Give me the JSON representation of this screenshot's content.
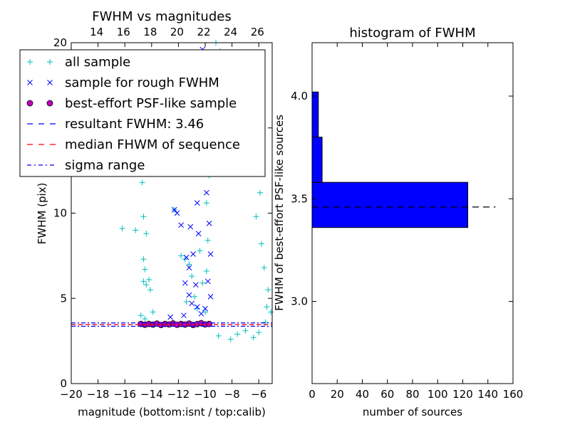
{
  "chart_data": [
    {
      "type": "scatter",
      "title": "FWHM vs magnitudes",
      "xlabel": "magnitude (bottom:isnt / top:calib)",
      "ylabel": "FWHM (pix)",
      "xlim": [
        -20,
        -5
      ],
      "ylim": [
        0,
        20
      ],
      "xticks": [
        -20,
        -18,
        -16,
        -14,
        -12,
        -10,
        -8,
        -6
      ],
      "xtick_labels": [
        "−20",
        "−18",
        "−16",
        "−14",
        "−12",
        "−10",
        "−8",
        "−6"
      ],
      "yticks": [
        0,
        5,
        10,
        15,
        20
      ],
      "ytick_labels": [
        "0",
        "5",
        "10",
        "15",
        "20"
      ],
      "top_xticks_at_bottom": [
        -19.7,
        -17.7,
        -15.7,
        -13.7,
        -11.7,
        -9.7,
        -7.7,
        -5.7
      ],
      "top_xtick_labels": [
        "14",
        "16",
        "18",
        "20",
        "22",
        "24",
        "26"
      ],
      "top_xtick_label_positions": [
        -19.7,
        -17.7,
        -15.7,
        -13.7,
        -11.7,
        -9.7,
        -7.7
      ],
      "legend_position": "upper-left",
      "legend": [
        {
          "label": "all sample",
          "marker": "plus",
          "color": "#00bfbf"
        },
        {
          "label": "sample for rough FWHM",
          "marker": "x",
          "color": "#0000ff"
        },
        {
          "label": "best-effort PSF-like sample",
          "marker": "circle",
          "color": "#bf00bf"
        },
        {
          "label": "resultant FWHM: 3.46",
          "marker": "dash",
          "color": "#0000ff"
        },
        {
          "label": "median FHWM of sequence",
          "marker": "dash",
          "color": "#ff0000"
        },
        {
          "label": "sigma range",
          "marker": "dashdot",
          "color": "#0000ff"
        }
      ],
      "series": [
        {
          "name": "all sample",
          "color": "#00bfbf",
          "points": [
            [
              -16.2,
              9.1
            ],
            [
              -15.2,
              9.0
            ],
            [
              -14.7,
              11.8
            ],
            [
              -14.6,
              9.8
            ],
            [
              -14.4,
              8.8
            ],
            [
              -14.6,
              7.3
            ],
            [
              -14.5,
              6.7
            ],
            [
              -14.2,
              6.1
            ],
            [
              -14.6,
              6.0
            ],
            [
              -14.4,
              5.8
            ],
            [
              -14.1,
              5.5
            ],
            [
              -14.8,
              4.0
            ],
            [
              -14.5,
              3.8
            ],
            [
              -13.9,
              4.2
            ],
            [
              -12.3,
              10.2
            ],
            [
              -11.8,
              7.5
            ],
            [
              -11.5,
              7.3
            ],
            [
              -11.2,
              7.0
            ],
            [
              -10.4,
              7.8
            ],
            [
              -11.0,
              6.3
            ],
            [
              -10.2,
              5.9
            ],
            [
              -10.8,
              5.1
            ],
            [
              -11.4,
              4.8
            ],
            [
              -10.6,
              4.4
            ],
            [
              -10.0,
              4.2
            ],
            [
              -9.9,
              6.6
            ],
            [
              -9.8,
              8.4
            ],
            [
              -9.9,
              10.6
            ],
            [
              -9.7,
              12.2
            ],
            [
              -9.2,
              18.9
            ],
            [
              -8.9,
              19.5
            ],
            [
              -9.2,
              20.0
            ],
            [
              -6.6,
              18.8
            ],
            [
              -6.2,
              18.4
            ],
            [
              -7.2,
              14.6
            ],
            [
              -6.5,
              13.9
            ],
            [
              -7.8,
              15.5
            ],
            [
              -8.2,
              17.0
            ],
            [
              -6.8,
              12.6
            ],
            [
              -5.9,
              11.2
            ],
            [
              -6.2,
              9.8
            ],
            [
              -5.8,
              8.2
            ],
            [
              -5.6,
              6.8
            ],
            [
              -5.3,
              5.5
            ],
            [
              -5.4,
              4.5
            ],
            [
              -5.1,
              4.2
            ],
            [
              -5.5,
              3.6
            ],
            [
              -6.0,
              3.0
            ],
            [
              -7.0,
              3.1
            ],
            [
              -7.6,
              2.9
            ],
            [
              -8.1,
              2.6
            ],
            [
              -9.0,
              2.8
            ],
            [
              -6.4,
              2.7
            ]
          ]
        },
        {
          "name": "sample for rough FWHM",
          "color": "#0000ff",
          "points": [
            [
              -12.3,
              10.2
            ],
            [
              -12.1,
              10.0
            ],
            [
              -11.8,
              9.3
            ],
            [
              -11.1,
              9.2
            ],
            [
              -11.4,
              7.4
            ],
            [
              -11.2,
              6.8
            ],
            [
              -11.5,
              5.9
            ],
            [
              -11.2,
              5.2
            ],
            [
              -11.0,
              4.7
            ],
            [
              -10.7,
              5.8
            ],
            [
              -10.9,
              7.6
            ],
            [
              -10.5,
              8.8
            ],
            [
              -10.6,
              10.6
            ],
            [
              -10.8,
              12.3
            ],
            [
              -10.5,
              14.0
            ],
            [
              -10.3,
              15.8
            ],
            [
              -10.5,
              17.4
            ],
            [
              -10.2,
              19.6
            ],
            [
              -10.0,
              12.8
            ],
            [
              -9.9,
              11.2
            ],
            [
              -9.7,
              9.4
            ],
            [
              -9.6,
              7.6
            ],
            [
              -9.8,
              6.0
            ],
            [
              -9.6,
              5.1
            ],
            [
              -10.0,
              4.4
            ],
            [
              -10.3,
              4.1
            ],
            [
              -10.6,
              4.5
            ],
            [
              -11.6,
              4.0
            ],
            [
              -12.6,
              3.9
            ],
            [
              -9.7,
              16.6
            ]
          ]
        },
        {
          "name": "best-effort PSF-like sample",
          "color": "#bf00bf",
          "points": [
            [
              -14.8,
              3.5
            ],
            [
              -14.5,
              3.45
            ],
            [
              -14.2,
              3.5
            ],
            [
              -13.9,
              3.46
            ],
            [
              -13.6,
              3.52
            ],
            [
              -13.3,
              3.44
            ],
            [
              -13.0,
              3.5
            ],
            [
              -12.7,
              3.47
            ],
            [
              -12.4,
              3.53
            ],
            [
              -12.1,
              3.45
            ],
            [
              -11.8,
              3.5
            ],
            [
              -11.5,
              3.46
            ],
            [
              -11.2,
              3.52
            ],
            [
              -10.9,
              3.44
            ],
            [
              -10.6,
              3.49
            ],
            [
              -10.3,
              3.55
            ],
            [
              -10.0,
              3.47
            ],
            [
              -9.7,
              3.5
            ]
          ]
        }
      ],
      "lines": [
        {
          "name": "resultant FWHM: 3.46",
          "y": 3.46,
          "color": "#0000ff",
          "style": "dashed"
        },
        {
          "name": "median FHWM of sequence",
          "y": 3.46,
          "color": "#ff0000",
          "style": "dashed"
        },
        {
          "name": "sigma range",
          "y": 3.36,
          "color": "#0000ff",
          "style": "dashdot"
        },
        {
          "name": "sigma range",
          "y": 3.56,
          "color": "#0000ff",
          "style": "dashdot"
        }
      ]
    },
    {
      "type": "bar",
      "orientation": "horizontal",
      "title": "histogram of FWHM",
      "xlabel": "number of sources",
      "ylabel": "FWHM of best-effort PSF-like sources",
      "xlim": [
        0,
        160
      ],
      "ylim": [
        2.6,
        4.26
      ],
      "xticks": [
        0,
        20,
        40,
        60,
        80,
        100,
        120,
        140,
        160
      ],
      "xtick_labels": [
        "0",
        "20",
        "40",
        "60",
        "80",
        "100",
        "120",
        "140",
        "160"
      ],
      "yticks": [
        3.0,
        3.5,
        4.0
      ],
      "ytick_labels": [
        "3.0",
        "3.5",
        "4.0"
      ],
      "bins": [
        {
          "from": 3.36,
          "to": 3.58,
          "count": 124
        },
        {
          "from": 3.58,
          "to": 3.8,
          "count": 8
        },
        {
          "from": 3.8,
          "to": 4.02,
          "count": 5
        }
      ],
      "bar_color": "#0000ff",
      "reference_line": {
        "y": 3.46,
        "from": 0,
        "to": 146,
        "style": "dashed",
        "color": "#000000"
      }
    }
  ]
}
